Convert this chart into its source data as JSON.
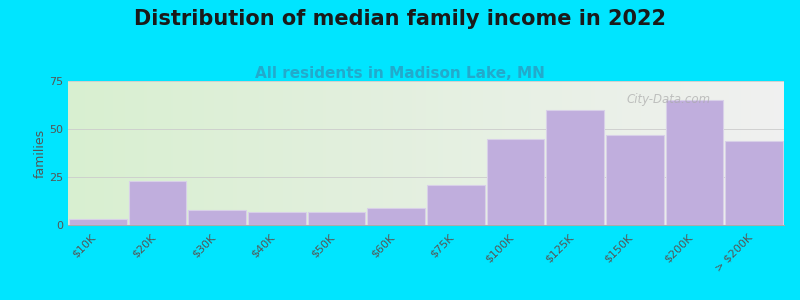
{
  "title": "Distribution of median family income in 2022",
  "subtitle": "All residents in Madison Lake, MN",
  "ylabel": "families",
  "categories": [
    "$10K",
    "$20K",
    "$30K",
    "$40K",
    "$50K",
    "$60K",
    "$75K",
    "$100K",
    "$125K",
    "$150K",
    "$200K",
    "> $200K"
  ],
  "values": [
    3,
    23,
    8,
    7,
    7,
    9,
    21,
    45,
    60,
    47,
    65,
    44
  ],
  "ylim": [
    0,
    75
  ],
  "yticks": [
    0,
    25,
    50,
    75
  ],
  "bar_color": "#c0aedd",
  "bar_edge_color": "#d8d0e8",
  "background_color": "#00e5ff",
  "title_fontsize": 15,
  "subtitle_fontsize": 11,
  "subtitle_color": "#22aacc",
  "ylabel_fontsize": 9,
  "watermark_text": "City-Data.com",
  "grid_color": "#cccccc",
  "tick_label_fontsize": 8,
  "plot_left_color": "#d8efd0",
  "plot_right_color": "#f0f0ee",
  "gradient_split": 0.55
}
